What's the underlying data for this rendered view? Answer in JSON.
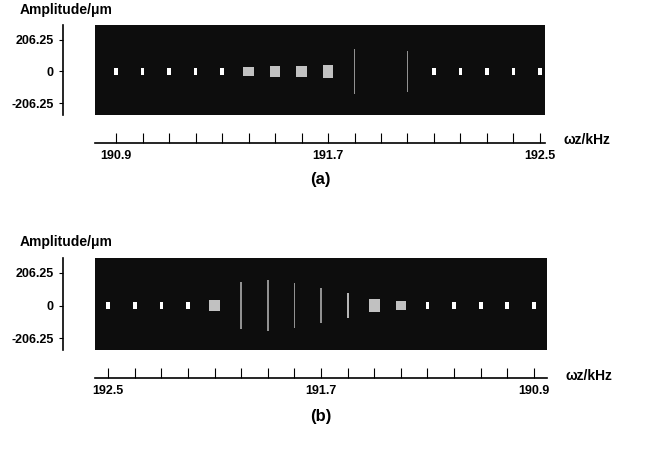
{
  "chart_data": [
    {
      "type": "bar",
      "title": "(a)",
      "x_label": "ωz/kHz",
      "y_label": "Amplitude/μm",
      "x": [
        190.9,
        191.0,
        191.1,
        191.2,
        191.3,
        191.4,
        191.5,
        191.6,
        191.7,
        191.8,
        191.9,
        192.0,
        192.1,
        192.2,
        192.3,
        192.4,
        192.5
      ],
      "values": [
        25,
        25,
        25,
        25,
        25,
        30,
        35,
        38,
        40,
        145,
        null,
        130,
        25,
        25,
        25,
        25,
        25
      ],
      "color": "#ffffff",
      "xlim": [
        190.82,
        192.52
      ],
      "xticks": [
        190.9,
        191.7,
        192.5
      ],
      "ylim": [
        -280,
        300
      ],
      "yticks": [
        206.25,
        0,
        -206.25
      ]
    },
    {
      "type": "bar",
      "title": "(b)",
      "x_label": "ωz/kHz",
      "y_label": "Amplitude/μm",
      "x": [
        192.5,
        192.4,
        192.3,
        192.2,
        192.1,
        192.0,
        191.9,
        191.8,
        191.7,
        191.6,
        191.5,
        191.4,
        191.3,
        191.2,
        191.1,
        191.0,
        190.9
      ],
      "values": [
        22,
        22,
        22,
        22,
        35,
        150,
        160,
        140,
        110,
        80,
        40,
        30,
        22,
        22,
        22,
        22,
        22
      ],
      "color": "#ffffff",
      "xlim": [
        192.55,
        190.85
      ],
      "xticks": [
        192.5,
        191.7,
        190.9
      ],
      "ylim": [
        -280,
        300
      ],
      "yticks": [
        206.25,
        0,
        -206.25
      ]
    }
  ]
}
